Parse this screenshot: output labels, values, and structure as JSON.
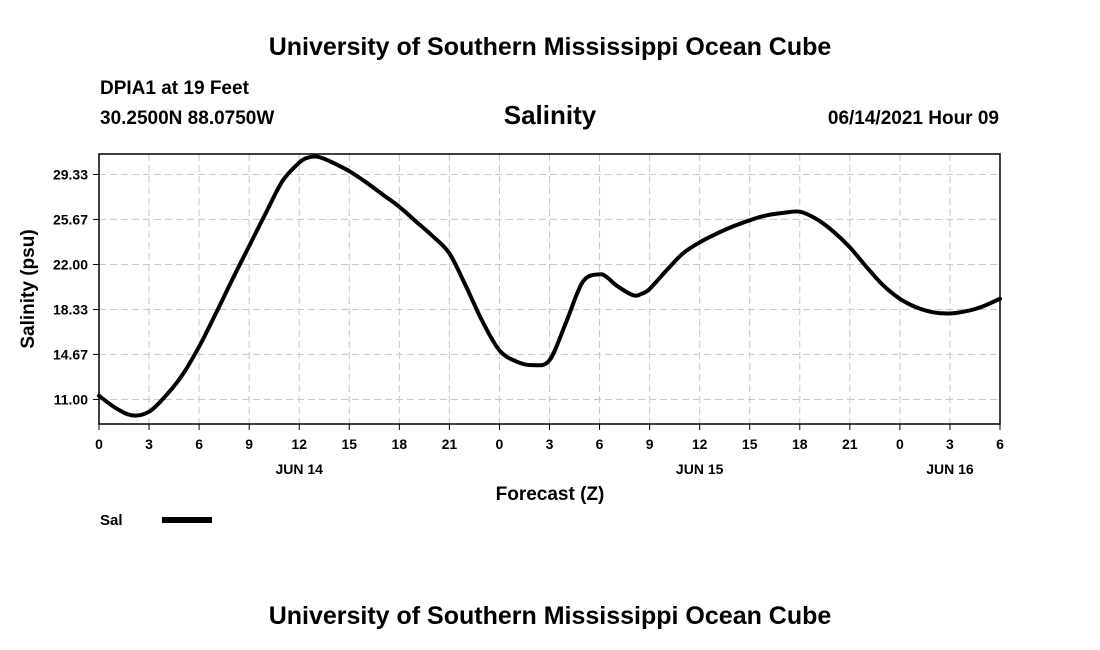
{
  "header": {
    "top_title": "University of Southern Mississippi Ocean Cube",
    "station_name": "DPIA1 at 19 Feet",
    "station_coords": "30.2500N  88.0750W",
    "timestamp": "06/14/2021 Hour 09",
    "bottom_title": "University of Southern Mississippi Ocean Cube"
  },
  "chart_data": {
    "type": "line",
    "title": "Salinity",
    "xlabel": "Forecast (Z)",
    "ylabel": "Salinity (psu)",
    "x_unit": "hours from 2021-06-14 00Z",
    "xlim": [
      0,
      54
    ],
    "ylim": [
      9.0,
      31.0
    ],
    "grid": true,
    "y_ticks": [
      11.0,
      14.67,
      18.33,
      22.0,
      25.67,
      29.33
    ],
    "y_tick_labels": [
      "11.00",
      "14.67",
      "18.33",
      "22.00",
      "25.67",
      "29.33"
    ],
    "x_ticks": [
      0,
      3,
      6,
      9,
      12,
      15,
      18,
      21,
      24,
      27,
      30,
      33,
      36,
      39,
      42,
      45,
      48,
      51,
      54
    ],
    "x_tick_labels": [
      "0",
      "3",
      "6",
      "9",
      "12",
      "15",
      "18",
      "21",
      "0",
      "3",
      "6",
      "9",
      "12",
      "15",
      "18",
      "21",
      "0",
      "3",
      "6"
    ],
    "date_labels": [
      {
        "x": 12,
        "text": "JUN 14"
      },
      {
        "x": 36,
        "text": "JUN 15"
      },
      {
        "x": 51,
        "text": "JUN 16"
      }
    ],
    "legend": {
      "placement": "bottom-left",
      "entries": [
        {
          "name": "Sal",
          "color": "#000000"
        }
      ]
    },
    "series": [
      {
        "name": "Sal",
        "color": "#000000",
        "x": [
          0,
          1,
          2,
          3,
          4,
          5,
          6,
          7,
          8,
          9,
          10,
          11,
          12,
          12.5,
          13,
          13.5,
          14,
          15,
          16,
          17,
          18,
          19,
          20,
          21,
          22,
          23,
          24,
          25,
          26,
          27,
          28,
          29,
          30,
          30.5,
          31,
          32,
          32.5,
          33,
          34,
          35,
          36,
          37,
          38,
          39,
          40,
          41,
          42,
          43,
          44,
          45,
          46,
          47,
          48,
          49,
          50,
          51,
          52,
          53,
          54
        ],
        "y": [
          11.3,
          10.3,
          9.7,
          10.0,
          11.3,
          13.0,
          15.3,
          18.0,
          20.8,
          23.5,
          26.2,
          28.8,
          30.3,
          30.7,
          30.8,
          30.6,
          30.3,
          29.6,
          28.7,
          27.7,
          26.7,
          25.5,
          24.3,
          22.9,
          20.2,
          17.3,
          15.0,
          14.1,
          13.8,
          14.2,
          17.3,
          20.6,
          21.2,
          20.9,
          20.3,
          19.5,
          19.6,
          20.0,
          21.5,
          22.9,
          23.8,
          24.5,
          25.1,
          25.6,
          26.0,
          26.2,
          26.3,
          25.7,
          24.7,
          23.4,
          21.8,
          20.3,
          19.2,
          18.5,
          18.1,
          18.0,
          18.2,
          18.6,
          19.2
        ]
      }
    ]
  }
}
